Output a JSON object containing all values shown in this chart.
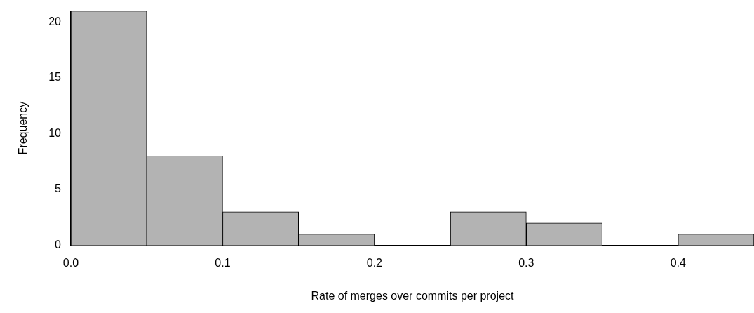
{
  "chart_data": {
    "type": "histogram",
    "xlabel": "Rate of merges over commits per project",
    "ylabel": "Frequency",
    "bins": [
      0,
      0.05,
      0.1,
      0.15,
      0.2,
      0.25,
      0.3,
      0.35,
      0.4,
      0.45
    ],
    "values": [
      21,
      8,
      3,
      1,
      0,
      3,
      2,
      0,
      1
    ],
    "color": "#b3b3b3",
    "xlim": [
      0,
      0.45
    ],
    "xticks": [
      {
        "value": 0,
        "label": "0.0"
      },
      0.1,
      0.2,
      0.3,
      0.4
    ],
    "ylim": [
      0,
      21
    ],
    "yticks": [
      0,
      5,
      10,
      15,
      20
    ],
    "grid": false,
    "legend": false
  }
}
